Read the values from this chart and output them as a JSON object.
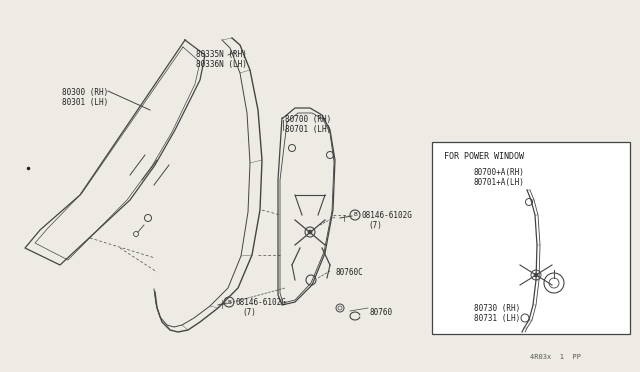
{
  "background_color": "#eeebe5",
  "fig_width": 6.4,
  "fig_height": 3.72,
  "dpi": 100,
  "labels": {
    "glass_rh": "80300 (RH)",
    "glass_lh": "80301 (LH)",
    "run_rh": "80335N (RH)",
    "run_lh": "80336N (LH)",
    "regulator_rh": "80700 (RH)",
    "regulator_lh": "80701 (LH)",
    "bolt_top": "08146-6102G",
    "bolt_top_qty": "(7)",
    "bolt_bot": "08146-6102G",
    "bolt_bot_qty": "(7)",
    "stopper": "80760C",
    "clip": "80760",
    "box_title": "FOR POWER WINDOW",
    "box_reg_rh": "80700+A(RH)",
    "box_reg_lh": "80701+A(LH)",
    "box_assy_rh": "80730 (RH)",
    "box_assy_lh": "80731 (LH)",
    "part_num": "4R03x  1  PP"
  },
  "line_color": "#444444",
  "text_color": "#222222"
}
